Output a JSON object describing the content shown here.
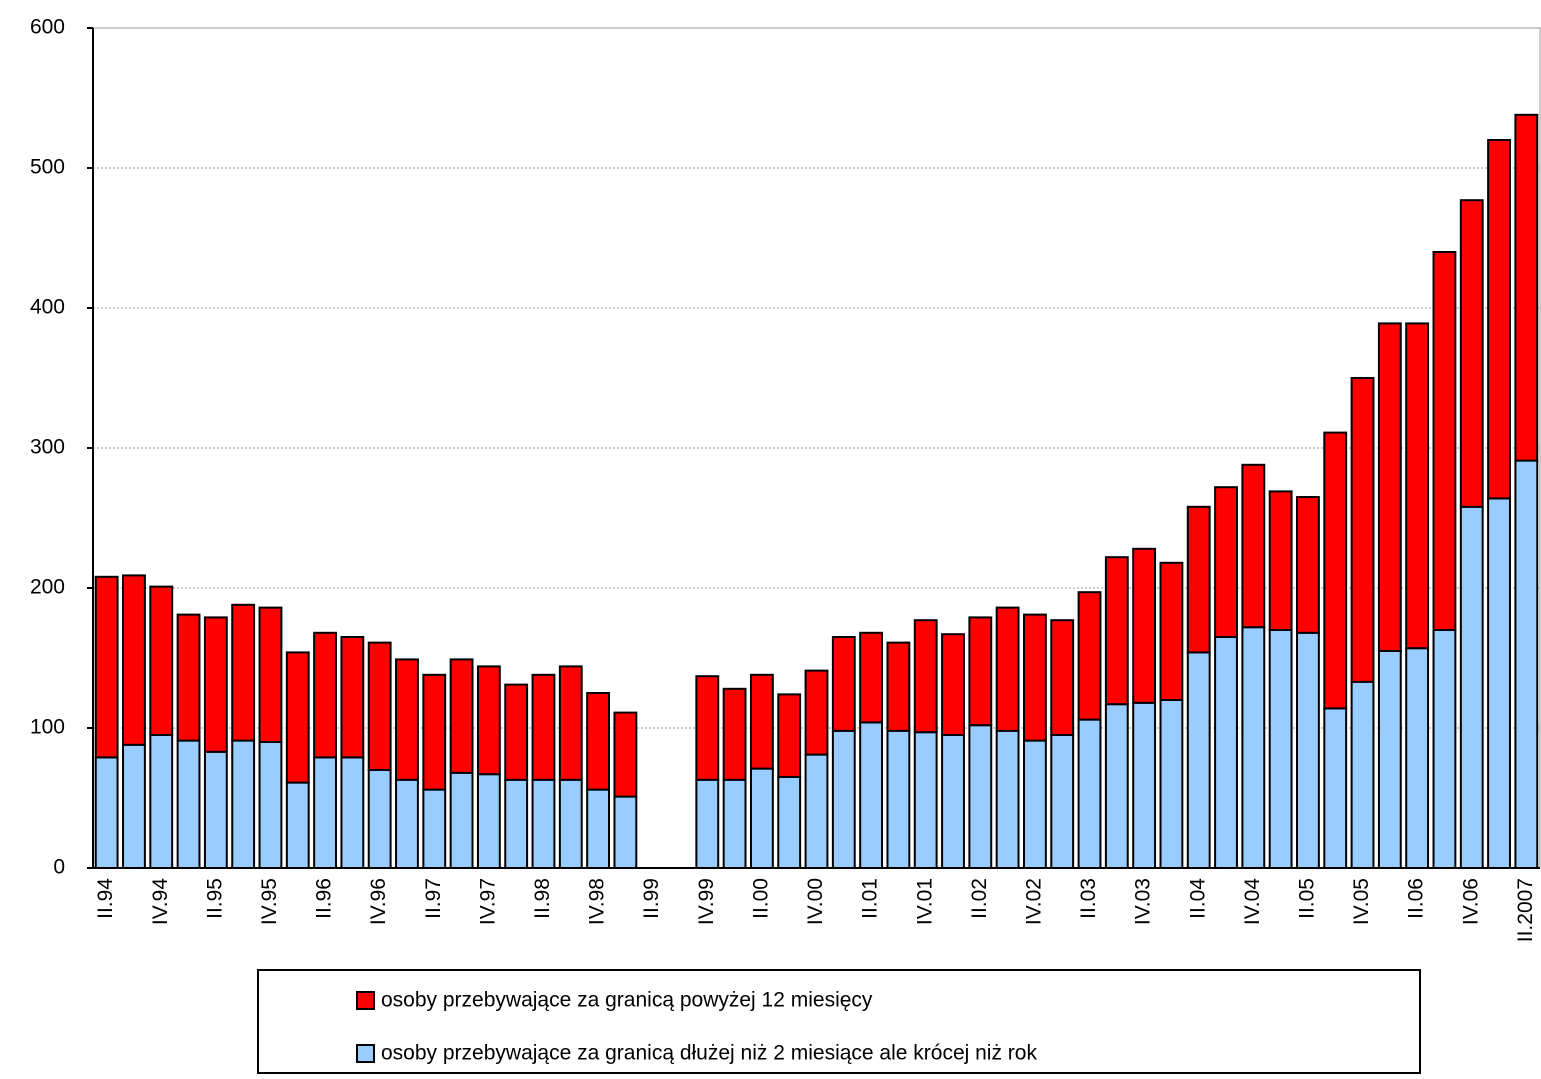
{
  "chart_data": {
    "type": "stacked-bar",
    "categories": [
      "II.94",
      null,
      "IV.94",
      null,
      "II.95",
      null,
      "IV.95",
      null,
      "II.96",
      null,
      "IV.96",
      null,
      "II.97",
      null,
      "IV.97",
      null,
      "II.98",
      null,
      "IV.98",
      null,
      "II.99",
      null,
      "IV.99",
      null,
      "II.00",
      null,
      "IV.00",
      null,
      "II.01",
      null,
      "IV.01",
      null,
      "II.02",
      null,
      "IV.02",
      null,
      "II.03",
      null,
      "IV.03",
      null,
      "II.04",
      null,
      "IV.04",
      null,
      "II.05",
      null,
      "IV.05",
      null,
      "II.06",
      null,
      "IV.06",
      null,
      "II.2007"
    ],
    "series": [
      {
        "name": "osoby przebywające za granicą dłużej niż 2 miesiące ale krócej niż rok",
        "color": "#99ccff",
        "values": [
          79,
          88,
          95,
          91,
          83,
          91,
          90,
          61,
          79,
          79,
          70,
          63,
          56,
          68,
          67,
          63,
          63,
          63,
          56,
          51,
          null,
          null,
          63,
          63,
          71,
          65,
          81,
          98,
          104,
          98,
          97,
          95,
          102,
          98,
          91,
          95,
          106,
          117,
          118,
          120,
          154,
          165,
          172,
          170,
          168,
          114,
          133,
          155,
          157,
          170,
          258,
          264,
          291
        ]
      },
      {
        "name": "osoby przebywające za granicą powyżej 12 miesięcy",
        "color": "#ff0000",
        "values": [
          129,
          121,
          106,
          90,
          96,
          97,
          96,
          93,
          89,
          86,
          91,
          86,
          82,
          81,
          77,
          68,
          75,
          81,
          69,
          60,
          null,
          null,
          74,
          65,
          67,
          59,
          60,
          67,
          64,
          63,
          80,
          72,
          77,
          88,
          90,
          82,
          91,
          105,
          110,
          98,
          104,
          107,
          116,
          99,
          97,
          197,
          217,
          234,
          232,
          270,
          219,
          256,
          247
        ]
      }
    ],
    "ylim": [
      0,
      600
    ],
    "yticks": [
      0,
      100,
      200,
      300,
      400,
      500,
      600
    ],
    "grid": true
  }
}
